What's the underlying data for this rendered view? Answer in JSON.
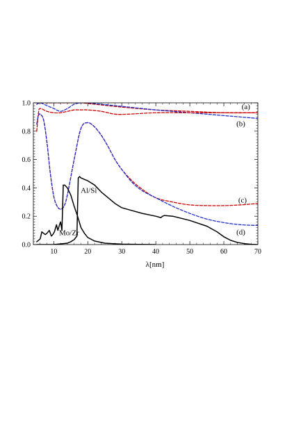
{
  "chart_data": {
    "type": "line",
    "title": "",
    "xlabel": "λ[nm]",
    "ylabel": "",
    "xlim": [
      4,
      70
    ],
    "ylim": [
      0,
      1.0
    ],
    "x_ticks": [
      10,
      20,
      30,
      40,
      50,
      60,
      70
    ],
    "y_ticks": [
      0.0,
      0.2,
      0.4,
      0.6,
      0.8,
      1.0
    ],
    "x_tick_labels": [
      "10",
      "20",
      "30",
      "40",
      "50",
      "60",
      "70"
    ],
    "y_tick_labels": [
      "0.0",
      "0.2",
      "0.4",
      "0.6",
      "0.8",
      "1.0"
    ],
    "grid": false,
    "colors": {
      "red": "#cc0000",
      "blue": "#1f2fcc",
      "black": "#000000"
    },
    "series": [
      {
        "label": "(a)",
        "color": "#cc0000",
        "style": "dashed",
        "x": [
          5,
          6,
          8,
          10,
          14,
          18,
          22,
          26,
          30,
          40,
          50,
          60,
          70
        ],
        "y": [
          0.99,
          1.0,
          1.0,
          1.0,
          1.0,
          1.0,
          0.99,
          0.98,
          0.97,
          0.95,
          0.94,
          0.93,
          0.93
        ]
      },
      {
        "label": "(a)",
        "color": "#1f2fcc",
        "style": "dashed",
        "x": [
          5,
          6,
          8,
          10,
          12,
          14,
          16,
          18,
          20,
          24,
          28,
          32,
          40,
          50,
          60,
          70
        ],
        "y": [
          0.99,
          1.0,
          0.98,
          0.96,
          0.94,
          0.96,
          0.99,
          1.0,
          1.0,
          0.99,
          0.98,
          0.97,
          0.95,
          0.93,
          0.91,
          0.89
        ]
      },
      {
        "label": "(b)",
        "color": "#cc0000",
        "style": "dashed",
        "x": [
          5,
          5.5,
          6,
          8,
          10,
          12,
          14,
          16,
          18,
          20,
          24,
          28,
          32,
          40,
          50,
          60,
          70
        ],
        "y": [
          0.8,
          0.93,
          0.96,
          0.94,
          0.93,
          0.93,
          0.94,
          0.95,
          0.95,
          0.95,
          0.94,
          0.92,
          0.92,
          0.93,
          0.93,
          0.93,
          0.93
        ]
      },
      {
        "label": "(c)",
        "color": "#cc0000",
        "style": "dashed",
        "x": [
          5,
          5.5,
          6,
          7,
          8,
          9,
          10,
          11,
          12,
          13,
          14,
          16,
          18,
          20,
          22,
          24,
          26,
          28,
          30,
          33,
          36,
          40,
          45,
          50,
          55,
          60,
          65,
          70
        ],
        "y": [
          0.85,
          0.91,
          0.92,
          0.88,
          0.72,
          0.5,
          0.34,
          0.27,
          0.25,
          0.27,
          0.35,
          0.6,
          0.82,
          0.86,
          0.83,
          0.77,
          0.69,
          0.6,
          0.53,
          0.45,
          0.39,
          0.33,
          0.3,
          0.28,
          0.275,
          0.275,
          0.28,
          0.29
        ]
      },
      {
        "label": "(d)",
        "color": "#1f2fcc",
        "style": "dashed",
        "x": [
          5,
          5.5,
          6,
          7,
          8,
          9,
          10,
          11,
          12,
          13,
          14,
          16,
          18,
          20,
          22,
          24,
          26,
          28,
          30,
          33,
          36,
          40,
          45,
          50,
          55,
          60,
          65,
          70
        ],
        "y": [
          0.85,
          0.91,
          0.92,
          0.88,
          0.72,
          0.5,
          0.34,
          0.27,
          0.25,
          0.27,
          0.35,
          0.6,
          0.82,
          0.86,
          0.83,
          0.77,
          0.69,
          0.6,
          0.53,
          0.44,
          0.38,
          0.33,
          0.27,
          0.22,
          0.18,
          0.155,
          0.14,
          0.135
        ]
      },
      {
        "label": "Mo/Zr",
        "color": "#000000",
        "style": "solid",
        "x": [
          5,
          6,
          6.5,
          7,
          7.5,
          8,
          8.7,
          9.3,
          9.7,
          10.2,
          10.8,
          11.2,
          11.7,
          12,
          12.4,
          12.8,
          13.2,
          14,
          15,
          16,
          17,
          17.5,
          18,
          19,
          20,
          22,
          25,
          30,
          35,
          40
        ],
        "y": [
          0.02,
          0.04,
          0.09,
          0.08,
          0.07,
          0.08,
          0.1,
          0.06,
          0.07,
          0.09,
          0.14,
          0.1,
          0.14,
          0.16,
          0.1,
          0.42,
          0.42,
          0.4,
          0.35,
          0.27,
          0.2,
          0.16,
          0.12,
          0.08,
          0.05,
          0.025,
          0.01,
          0.003,
          0.001,
          0.0
        ]
      },
      {
        "label": "Al/Si",
        "color": "#000000",
        "style": "solid",
        "x": [
          5,
          10,
          12,
          14,
          15,
          16,
          16.8,
          17.2,
          17.6,
          18,
          19,
          20,
          22,
          24,
          26,
          28,
          30,
          33,
          36,
          40,
          41.5,
          42,
          42.5,
          45,
          50,
          55,
          58,
          60,
          62,
          64,
          66,
          68,
          70
        ],
        "y": [
          0.0,
          0.0,
          0.005,
          0.01,
          0.02,
          0.035,
          0.06,
          0.47,
          0.48,
          0.47,
          0.46,
          0.45,
          0.42,
          0.37,
          0.33,
          0.29,
          0.26,
          0.24,
          0.22,
          0.2,
          0.19,
          0.2,
          0.205,
          0.2,
          0.17,
          0.13,
          0.09,
          0.055,
          0.03,
          0.015,
          0.007,
          0.002,
          0.0
        ]
      }
    ],
    "annotations": [
      {
        "text": "(a)",
        "x": 66.5,
        "y": 0.975
      },
      {
        "text": "(b)",
        "x": 65.0,
        "y": 0.855
      },
      {
        "text": "(c)",
        "x": 65.5,
        "y": 0.315
      },
      {
        "text": "(d)",
        "x": 65.0,
        "y": 0.09
      },
      {
        "text": "Al/Si",
        "x": 20.3,
        "y": 0.385
      },
      {
        "text": "Mo/Zr",
        "x": 14.5,
        "y": 0.085
      }
    ]
  }
}
